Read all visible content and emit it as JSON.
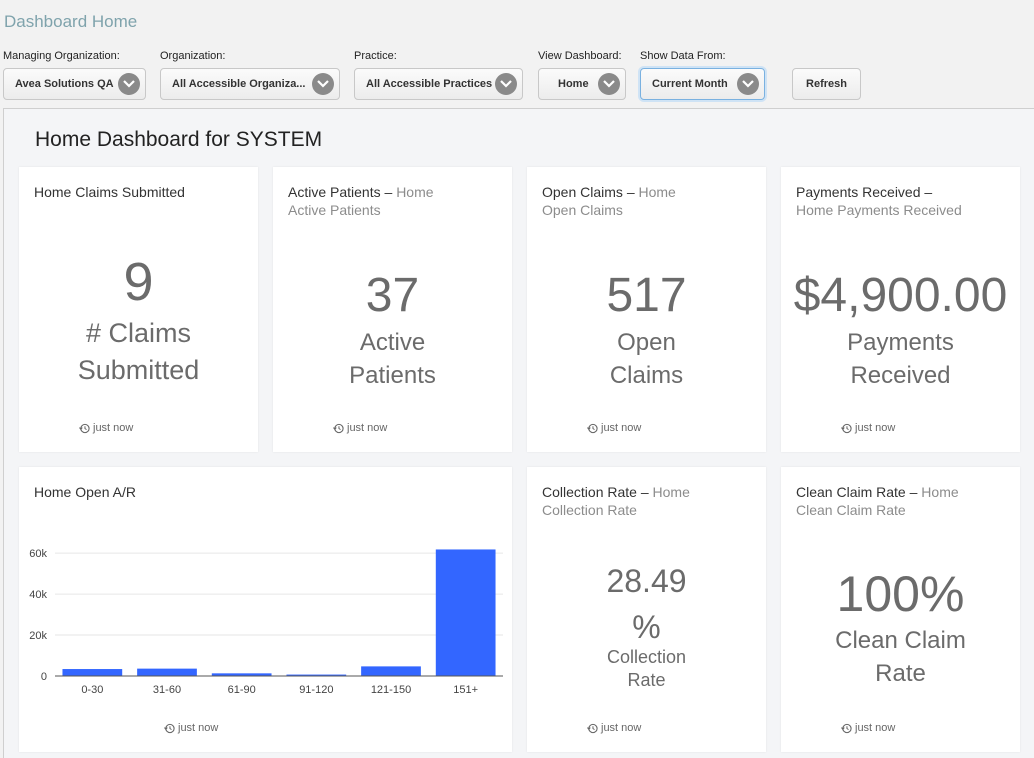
{
  "header": {
    "title": "Dashboard Home"
  },
  "filters": [
    {
      "label": "Managing Organization:",
      "value": "Avea Solutions QA"
    },
    {
      "label": "Organization:",
      "value": "All Accessible Organiza..."
    },
    {
      "label": "Practice:",
      "value": "All Accessible Practices"
    },
    {
      "label": "View Dashboard:",
      "value": "Home"
    },
    {
      "label": "Show Data From:",
      "value": "Current Month"
    }
  ],
  "refresh_label": "Refresh",
  "dashboard": {
    "title": "Home Dashboard for SYSTEM",
    "cards": {
      "claims_submitted": {
        "title": "Home Claims Submitted",
        "value": "9",
        "caption_line1": "# Claims",
        "caption_line2": "Submitted",
        "updated": "just now"
      },
      "active_patients": {
        "title": "Active Patients",
        "sep": "–",
        "subtitle_a": "Home",
        "subtitle_b": "Active Patients",
        "value": "37",
        "caption_line1": "Active",
        "caption_line2": "Patients",
        "updated": "just now"
      },
      "open_claims": {
        "title": "Open Claims",
        "sep": "–",
        "subtitle_a": "Home",
        "subtitle_b": "Open Claims",
        "value": "517",
        "caption_line1": "Open",
        "caption_line2": "Claims",
        "updated": "just now"
      },
      "payments_received": {
        "title": "Payments Received",
        "sep": "–",
        "subtitle_b": "Home Payments Received",
        "value": "$4,900.00",
        "caption_line1": "Payments",
        "caption_line2": "Received",
        "updated": "just now"
      },
      "open_ar": {
        "title": "Home Open A/R",
        "updated": "just now"
      },
      "collection_rate": {
        "title": "Collection Rate",
        "sep": "–",
        "subtitle_a": "Home",
        "subtitle_b": "Collection Rate",
        "value_line1": "28.49",
        "value_line2": "%",
        "caption_line1": "Collection",
        "caption_line2": "Rate",
        "updated": "just now"
      },
      "clean_claim_rate": {
        "title": "Clean Claim Rate",
        "sep": "–",
        "subtitle_a": "Home",
        "subtitle_b": "Clean Claim Rate",
        "value": "100%",
        "caption_line1": "Clean Claim",
        "caption_line2": "Rate",
        "updated": "just now"
      }
    }
  },
  "chart_data": {
    "type": "bar",
    "title": "Home Open A/R",
    "categories": [
      "0-30",
      "31-60",
      "61-90",
      "91-120",
      "121-150",
      "151+"
    ],
    "values": [
      3400,
      3600,
      1300,
      700,
      4700,
      61800
    ],
    "yticks": [
      0,
      20000,
      40000,
      60000
    ],
    "ytick_labels": [
      "0",
      "20k",
      "40k",
      "60k"
    ],
    "ylim": [
      0,
      63000
    ],
    "grid": true,
    "bar_color": "#3366ff"
  }
}
